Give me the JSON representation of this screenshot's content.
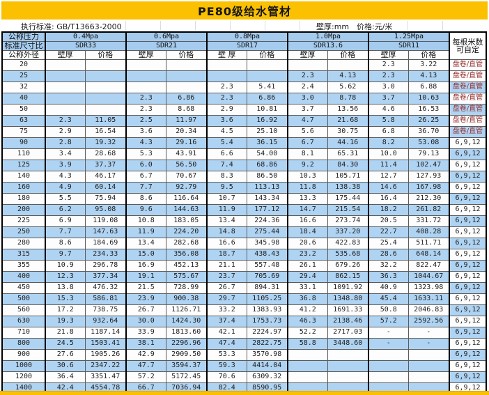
{
  "title": "PE80级给水管材",
  "meta": {
    "standard_label": "执行标准: GB/T13663-2000",
    "unit_wall": "壁厚:mm",
    "unit_price": "价格:元/米"
  },
  "colors": {
    "accent_gold": "#FBC101",
    "header_blue": "#A5CBEE",
    "stripe_blue": "#AFD3F2",
    "coil_text": "#993333"
  },
  "header": {
    "pressure_label": "公称压力",
    "sdr_label": "标准尺寸比",
    "od_label": "公称外径",
    "length_label_line1": "每根米数",
    "length_label_line2": "可自定",
    "groups": [
      {
        "pressure": "0.4Mpa",
        "sdr": "SDR33",
        "wall": "壁厚",
        "price": "价格"
      },
      {
        "pressure": "0.6Mpa",
        "sdr": "SDR21",
        "wall": "壁厚",
        "price": "价格"
      },
      {
        "pressure": "0.8Mpa",
        "sdr": "SDR17",
        "wall": "壁 厚",
        "price": "价格"
      },
      {
        "pressure": "1.0Mpa",
        "sdr": "SDR13.6",
        "wall": "壁厚",
        "price": "价格"
      },
      {
        "pressure": "1.25Mpa",
        "sdr": "SDR11",
        "wall": "壁厚",
        "price": "价格"
      }
    ]
  },
  "table": {
    "coil_label": "盘卷/直管",
    "rows": [
      {
        "od": "20",
        "cells": [
          "",
          "",
          "",
          "",
          "",
          "",
          "",
          "",
          "2.3",
          "3.22"
        ],
        "length": "盘卷/直管"
      },
      {
        "od": "25",
        "cells": [
          "",
          "",
          "",
          "",
          "",
          "",
          "2.3",
          "4.13",
          "2.3",
          "4.13"
        ],
        "length": "盘卷/直管"
      },
      {
        "od": "32",
        "cells": [
          "",
          "",
          "",
          "",
          "2.3",
          "5.41",
          "2.4",
          "5.62",
          "3.0",
          "6.88"
        ],
        "length": "盘卷/直管"
      },
      {
        "od": "40",
        "cells": [
          "",
          "",
          "2.3",
          "6.86",
          "2.3",
          "6.86",
          "3.0",
          "8.78",
          "3.7",
          "10.63"
        ],
        "length": "盘卷/直管"
      },
      {
        "od": "50",
        "cells": [
          "",
          "",
          "2.3",
          "8.68",
          "2.9",
          "10.81",
          "3.7",
          "13.56",
          "4.6",
          "16.53"
        ],
        "length": "盘卷/直管"
      },
      {
        "od": "63",
        "cells": [
          "2.3",
          "11.05",
          "2.5",
          "11.97",
          "3.6",
          "16.92",
          "4.7",
          "21.68",
          "5.8",
          "26.25"
        ],
        "length": "盘卷/直管"
      },
      {
        "od": "75",
        "cells": [
          "2.9",
          "16.54",
          "3.6",
          "20.34",
          "4.5",
          "25.10",
          "5.6",
          "30.75",
          "6.8",
          "36.70"
        ],
        "length": "盘卷/直管"
      },
      {
        "od": "90",
        "cells": [
          "2.8",
          "19.32",
          "4.3",
          "29.16",
          "5.4",
          "36.15",
          "6.7",
          "44.16",
          "8.2",
          "53.08"
        ],
        "length": "6,9,12"
      },
      {
        "od": "110",
        "cells": [
          "3.4",
          "28.68",
          "5.3",
          "43.91",
          "6.6",
          "54.00",
          "8.1",
          "65.31",
          "10.0",
          "79.13"
        ],
        "length": "6,9,12"
      },
      {
        "od": "125",
        "cells": [
          "3.9",
          "37.37",
          "6.0",
          "56.50",
          "7.4",
          "68.86",
          "9.2",
          "84.30",
          "11.4",
          "102.47"
        ],
        "length": "6,9,12"
      },
      {
        "od": "140",
        "cells": [
          "4.3",
          "46.17",
          "6.7",
          "70.67",
          "8.3",
          "86.50",
          "10.3",
          "105.71",
          "12.7",
          "127.93"
        ],
        "length": "6,9,12"
      },
      {
        "od": "160",
        "cells": [
          "4.9",
          "60.14",
          "7.7",
          "92.79",
          "9.5",
          "113.13",
          "11.8",
          "138.38",
          "14.6",
          "167.98"
        ],
        "length": "6,9,12"
      },
      {
        "od": "180",
        "cells": [
          "5.5",
          "75.94",
          "8.6",
          "116.64",
          "10.7",
          "143.34",
          "13.3",
          "175.44",
          "16.4",
          "212.30"
        ],
        "length": "6,9,12"
      },
      {
        "od": "200",
        "cells": [
          "6.2",
          "95.08",
          "9.6",
          "144.63",
          "11.9",
          "177.12",
          "14.7",
          "215.54",
          "18.2",
          "261.82"
        ],
        "length": "6,9,12"
      },
      {
        "od": "225",
        "cells": [
          "6.9",
          "119.08",
          "10.8",
          "183.05",
          "13.4",
          "224.36",
          "16.6",
          "273.74",
          "20.5",
          "331.72"
        ],
        "length": "6,9,12"
      },
      {
        "od": "250",
        "cells": [
          "7.7",
          "147.63",
          "11.9",
          "224.20",
          "14.8",
          "275.44",
          "18.4",
          "337.20",
          "22.7",
          "408.28"
        ],
        "length": "6,9,12"
      },
      {
        "od": "280",
        "cells": [
          "8.6",
          "184.69",
          "13.4",
          "282.68",
          "16.6",
          "345.98",
          "20.6",
          "422.83",
          "25.4",
          "511.71"
        ],
        "length": "6,9,12"
      },
      {
        "od": "315",
        "cells": [
          "9.7",
          "234.33",
          "15.0",
          "356.08",
          "18.7",
          "438.43",
          "23.2",
          "535.68",
          "28.6",
          "648.14"
        ],
        "length": "6,9,12"
      },
      {
        "od": "355",
        "cells": [
          "10.9",
          "296.78",
          "16.9",
          "452.13",
          "21.1",
          "557.48",
          "26.1",
          "679.26",
          "32.2",
          "822.47"
        ],
        "length": "6,9,12"
      },
      {
        "od": "400",
        "cells": [
          "12.3",
          "377.34",
          "19.1",
          "575.67",
          "23.7",
          "705.69",
          "29.4",
          "862.15",
          "36.3",
          "1044.67"
        ],
        "length": "6,9,12"
      },
      {
        "od": "450",
        "cells": [
          "13.8",
          "476.32",
          "21.5",
          "728.99",
          "26.7",
          "894.31",
          "33.1",
          "1091.92",
          "40.9",
          "1323.98"
        ],
        "length": "6,9,12"
      },
      {
        "od": "500",
        "cells": [
          "15.3",
          "586.81",
          "23.9",
          "900.38",
          "29.7",
          "1105.25",
          "36.8",
          "1348.80",
          "45.4",
          "1633.11"
        ],
        "length": "6,9,12"
      },
      {
        "od": "560",
        "cells": [
          "17.2",
          "738.75",
          "26.7",
          "1126.71",
          "33.2",
          "1383.93",
          "41.2",
          "1691.33",
          "50.8",
          "2046.83"
        ],
        "length": "6,9,12"
      },
      {
        "od": "630",
        "cells": [
          "19.3",
          "932.64",
          "30.0",
          "1424.30",
          "37.4",
          "1753.73",
          "46.3",
          "2138.46",
          "57.2",
          "2592.56"
        ],
        "length": "6,9,12"
      },
      {
        "od": "710",
        "cells": [
          "21.8",
          "1187.14",
          "33.9",
          "1813.60",
          "42.1",
          "2224.97",
          "52.2",
          "2717.03",
          "-",
          "-"
        ],
        "length": "6,9,12"
      },
      {
        "od": "800",
        "cells": [
          "24.5",
          "1503.41",
          "38.1",
          "2296.96",
          "47.4",
          "2822.75",
          "58.8",
          "3448.60",
          "-",
          "-"
        ],
        "length": "6,9,12"
      },
      {
        "od": "900",
        "cells": [
          "27.6",
          "1905.26",
          "42.9",
          "2909.50",
          "53.3",
          "3570.98",
          "",
          "",
          "",
          ""
        ],
        "length": "6,9,12"
      },
      {
        "od": "1000",
        "cells": [
          "30.6",
          "2347.22",
          "47.7",
          "3594.37",
          "59.3",
          "4414.04",
          "",
          "",
          "",
          ""
        ],
        "length": "6,9,12"
      },
      {
        "od": "1200",
        "cells": [
          "36.4",
          "3351.47",
          "57.2",
          "5172.45",
          "70.6",
          "6309.32",
          "",
          "",
          "",
          ""
        ],
        "length": "6,9,12"
      },
      {
        "od": "1400",
        "cells": [
          "42.4",
          "4554.78",
          "66.7",
          "7036.94",
          "82.4",
          "8590.95",
          "",
          "",
          "",
          ""
        ],
        "length": "6,9,12"
      }
    ]
  }
}
